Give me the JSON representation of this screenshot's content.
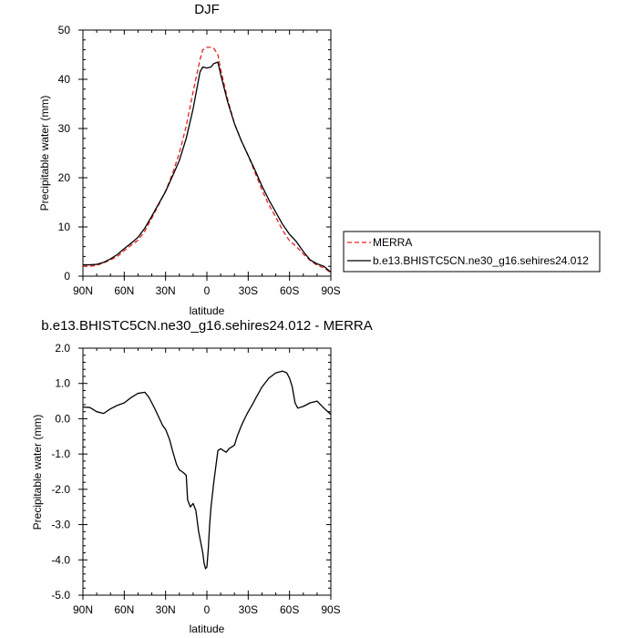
{
  "chart_data": [
    {
      "type": "line",
      "title": "DJF",
      "xlabel": "latitude",
      "ylabel": "Precipitable water (mm)",
      "xlim": [
        90,
        -90
      ],
      "ylim": [
        0,
        50
      ],
      "x_ticks": [
        90,
        60,
        30,
        0,
        -30,
        -60,
        -90
      ],
      "x_tick_labels": [
        "90N",
        "60N",
        "30N",
        "0",
        "30S",
        "60S",
        "90S"
      ],
      "y_ticks": [
        0,
        10,
        20,
        30,
        40,
        50
      ],
      "y_tick_labels": [
        "0",
        "10",
        "20",
        "30",
        "40",
        "50"
      ],
      "grid": false,
      "legend": {
        "position": "right-middle",
        "entries": [
          "MERRA",
          "b.e13.BHISTC5CN.ne30_g16.sehires24.012"
        ]
      },
      "series": [
        {
          "name": "MERRA",
          "color": "#e8201e",
          "dash": "dashed",
          "x": [
            90,
            85,
            80,
            75,
            70,
            65,
            60,
            55,
            50,
            45,
            40,
            35,
            30,
            25,
            20,
            15,
            10,
            5,
            3,
            0,
            -3,
            -5,
            -8,
            -10,
            -15,
            -20,
            -25,
            -30,
            -35,
            -40,
            -45,
            -50,
            -55,
            -60,
            -65,
            -70,
            -75,
            -80,
            -85,
            -90
          ],
          "y": [
            2.0,
            2.0,
            2.2,
            2.7,
            3.3,
            4.0,
            5.2,
            6.3,
            7.3,
            9.2,
            11.8,
            14.5,
            17.3,
            20.8,
            25.0,
            30.5,
            37.5,
            44.0,
            46.0,
            46.5,
            46.5,
            46.3,
            45.0,
            42.0,
            36.0,
            31.0,
            27.5,
            24.5,
            21.0,
            17.5,
            14.5,
            12.0,
            9.3,
            7.2,
            6.0,
            4.5,
            3.2,
            2.2,
            1.7,
            0.7
          ]
        },
        {
          "name": "b.e13.BHISTC5CN.ne30_g16.sehires24.012",
          "color": "#000000",
          "dash": "solid",
          "x": [
            90,
            85,
            80,
            75,
            70,
            65,
            60,
            55,
            50,
            45,
            40,
            35,
            30,
            25,
            20,
            15,
            10,
            5,
            3,
            0,
            -3,
            -5,
            -8,
            -10,
            -15,
            -20,
            -25,
            -30,
            -35,
            -40,
            -45,
            -50,
            -55,
            -60,
            -65,
            -70,
            -75,
            -80,
            -85,
            -90
          ],
          "y": [
            2.3,
            2.3,
            2.4,
            2.8,
            3.5,
            4.4,
            5.6,
            6.7,
            7.9,
            9.8,
            12.2,
            14.7,
            17.2,
            20.3,
            23.5,
            28.0,
            34.0,
            41.5,
            42.5,
            42.3,
            42.5,
            43.2,
            43.5,
            41.0,
            35.5,
            31.0,
            27.5,
            24.5,
            21.5,
            18.3,
            15.5,
            13.0,
            10.5,
            8.5,
            7.0,
            5.0,
            3.3,
            2.5,
            2.0,
            0.8
          ]
        }
      ]
    },
    {
      "type": "line",
      "title": "b.e13.BHISTC5CN.ne30_g16.sehires24.012 - MERRA",
      "xlabel": "latitude",
      "ylabel": "Precipitable water (mm)",
      "xlim": [
        90,
        -90
      ],
      "ylim": [
        -5,
        2
      ],
      "x_ticks": [
        90,
        60,
        30,
        0,
        -30,
        -60,
        -90
      ],
      "x_tick_labels": [
        "90N",
        "60N",
        "30N",
        "0",
        "30S",
        "60S",
        "90S"
      ],
      "y_ticks": [
        -5,
        -4,
        -3,
        -2,
        -1,
        0,
        1,
        2
      ],
      "y_tick_labels": [
        "-5.0",
        "-4.0",
        "-3.0",
        "-2.0",
        "-1.0",
        "0.0",
        "1.0",
        "2.0"
      ],
      "grid": false,
      "series": [
        {
          "color": "#000000",
          "dash": "solid",
          "x": [
            90,
            85,
            80,
            75,
            70,
            65,
            60,
            55,
            50,
            45,
            42,
            40,
            38,
            35,
            32,
            30,
            27,
            25,
            22,
            20,
            18,
            15,
            14,
            12,
            10,
            8,
            6,
            5,
            3,
            2,
            1,
            0,
            -1,
            -2,
            -3,
            -5,
            -7,
            -8,
            -10,
            -12,
            -14,
            -16,
            -18,
            -20,
            -22,
            -25,
            -28,
            -30,
            -33,
            -35,
            -40,
            -45,
            -50,
            -55,
            -58,
            -60,
            -62,
            -64,
            -66,
            -70,
            -75,
            -80,
            -85,
            -90
          ],
          "y": [
            0.33,
            0.32,
            0.2,
            0.15,
            0.28,
            0.38,
            0.45,
            0.6,
            0.72,
            0.75,
            0.6,
            0.45,
            0.3,
            0.05,
            -0.2,
            -0.3,
            -0.6,
            -0.9,
            -1.3,
            -1.45,
            -1.5,
            -1.6,
            -2.3,
            -2.5,
            -2.4,
            -2.6,
            -3.2,
            -3.4,
            -3.8,
            -4.1,
            -4.25,
            -4.2,
            -3.7,
            -3.0,
            -2.5,
            -1.8,
            -1.2,
            -0.9,
            -0.85,
            -0.9,
            -0.95,
            -0.85,
            -0.8,
            -0.75,
            -0.5,
            -0.2,
            0.05,
            0.2,
            0.4,
            0.55,
            0.9,
            1.15,
            1.3,
            1.35,
            1.3,
            1.15,
            0.9,
            0.45,
            0.3,
            0.35,
            0.45,
            0.5,
            0.3,
            0.12
          ]
        }
      ]
    }
  ]
}
